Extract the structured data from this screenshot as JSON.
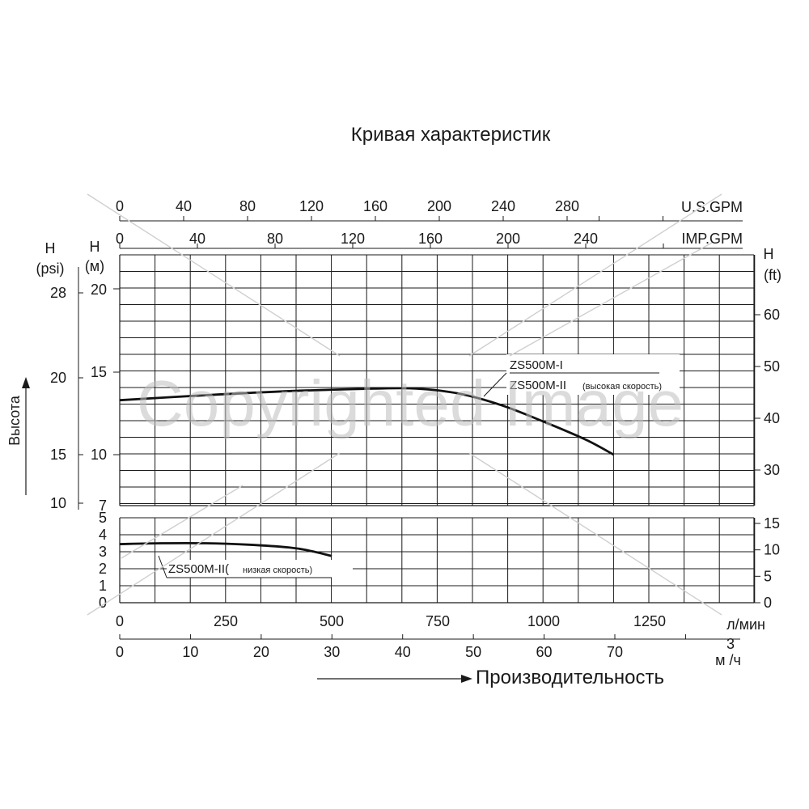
{
  "chart_data": {
    "type": "line",
    "title": "Кривая характеристик",
    "xlabel": "Производительность",
    "ylabel": "Высота",
    "top_axis_usgpm": {
      "label": "U.S.GPM",
      "ticks": [
        "0",
        "40",
        "80",
        "120",
        "160",
        "200",
        "240",
        "280"
      ]
    },
    "top_axis_impgpm": {
      "label": "IMP.GPM",
      "ticks": [
        "0",
        "40",
        "80",
        "120",
        "160",
        "200",
        "240"
      ]
    },
    "left_axis_psi": {
      "label": "H\n(psi)",
      "label_h": "H",
      "label_unit": "(psi)",
      "ticks": [
        "28",
        "20",
        "15",
        "10"
      ]
    },
    "left_axis_m": {
      "label_h": "H",
      "label_unit": "(м)",
      "upper_ticks": [
        "20",
        "15",
        "10",
        "7"
      ],
      "lower_ticks": [
        "5",
        "4",
        "3",
        "2",
        "1",
        "0"
      ]
    },
    "right_axis_ft": {
      "label_h": "H",
      "label_unit": "(ft)",
      "upper_ticks": [
        "60",
        "50",
        "40",
        "30"
      ],
      "lower_ticks": [
        "15",
        "10",
        "5",
        "0"
      ]
    },
    "bottom_axis_lpm": {
      "label": "л/мин",
      "ticks": [
        "0",
        "250",
        "500",
        "750",
        "1000",
        "1250"
      ]
    },
    "bottom_axis_m3h": {
      "label_sup": "3",
      "label": "м /ч",
      "ticks": [
        "0",
        "10",
        "20",
        "30",
        "40",
        "50",
        "60",
        "70"
      ]
    },
    "x_unit": "л/мин",
    "xlim": [
      0,
      1500
    ],
    "ylim_upper": [
      7,
      23
    ],
    "ylim_lower": [
      0,
      5
    ],
    "series": [
      {
        "name": "ZS500M-I",
        "name2": "ZS500M-II",
        "name2_note": "(высокая скорость)",
        "panel": "upper",
        "x": [
          0,
          200,
          400,
          600,
          700,
          800,
          900,
          1000,
          1100,
          1165
        ],
        "y": [
          13.3,
          13.6,
          13.85,
          14.0,
          14.0,
          13.7,
          13.0,
          12.0,
          10.9,
          10.0
        ]
      },
      {
        "name": "ZS500M-II(",
        "name_note": "низкая скорость)",
        "panel": "lower",
        "x": [
          0,
          100,
          200,
          300,
          400,
          450,
          500
        ],
        "y": [
          3.45,
          3.5,
          3.5,
          3.42,
          3.25,
          3.05,
          2.75
        ]
      }
    ],
    "grid": true,
    "watermark": "Copyrighted Image"
  }
}
